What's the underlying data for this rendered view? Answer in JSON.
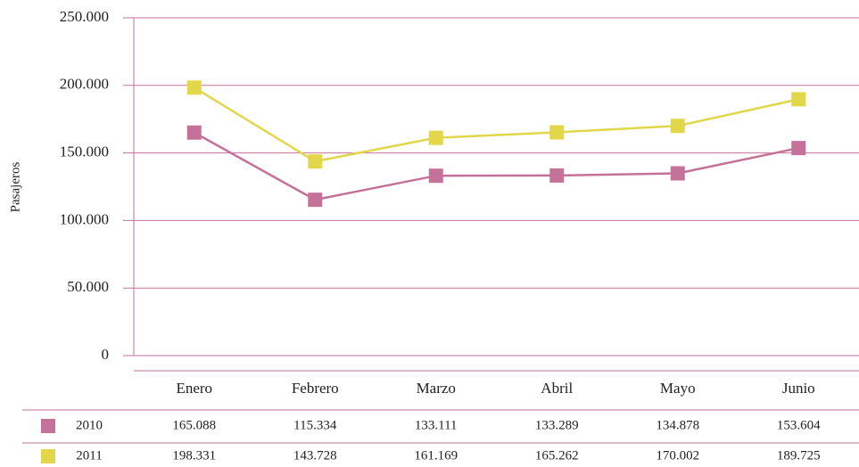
{
  "chart_data": {
    "type": "line",
    "y_label": "Pasajeros",
    "categories": [
      "Enero",
      "Febrero",
      "Marzo",
      "Abril",
      "Mayo",
      "Junio"
    ],
    "series": [
      {
        "name": "2010",
        "color": "#c4729a",
        "values": [
          165088,
          115334,
          133111,
          133289,
          134878,
          153604
        ],
        "value_labels": [
          "165.088",
          "115.334",
          "133.111",
          "133.289",
          "134.878",
          "153.604"
        ]
      },
      {
        "name": "2011",
        "color": "#e2d64a",
        "values": [
          198331,
          143728,
          161169,
          165262,
          170002,
          189725
        ],
        "value_labels": [
          "198.331",
          "143.728",
          "161.169",
          "165.262",
          "170.002",
          "189.725"
        ]
      }
    ],
    "ylim": [
      0,
      250000
    ],
    "yticks": [
      0,
      {
        "value": 50000,
        "label": "50.000"
      },
      {
        "value": 100000,
        "label": "100.000"
      },
      {
        "value": 150000,
        "label": "150.000"
      },
      {
        "value": 200000,
        "label": "200.000"
      },
      {
        "value": 250000,
        "label": "250.000"
      }
    ],
    "grid": true
  }
}
